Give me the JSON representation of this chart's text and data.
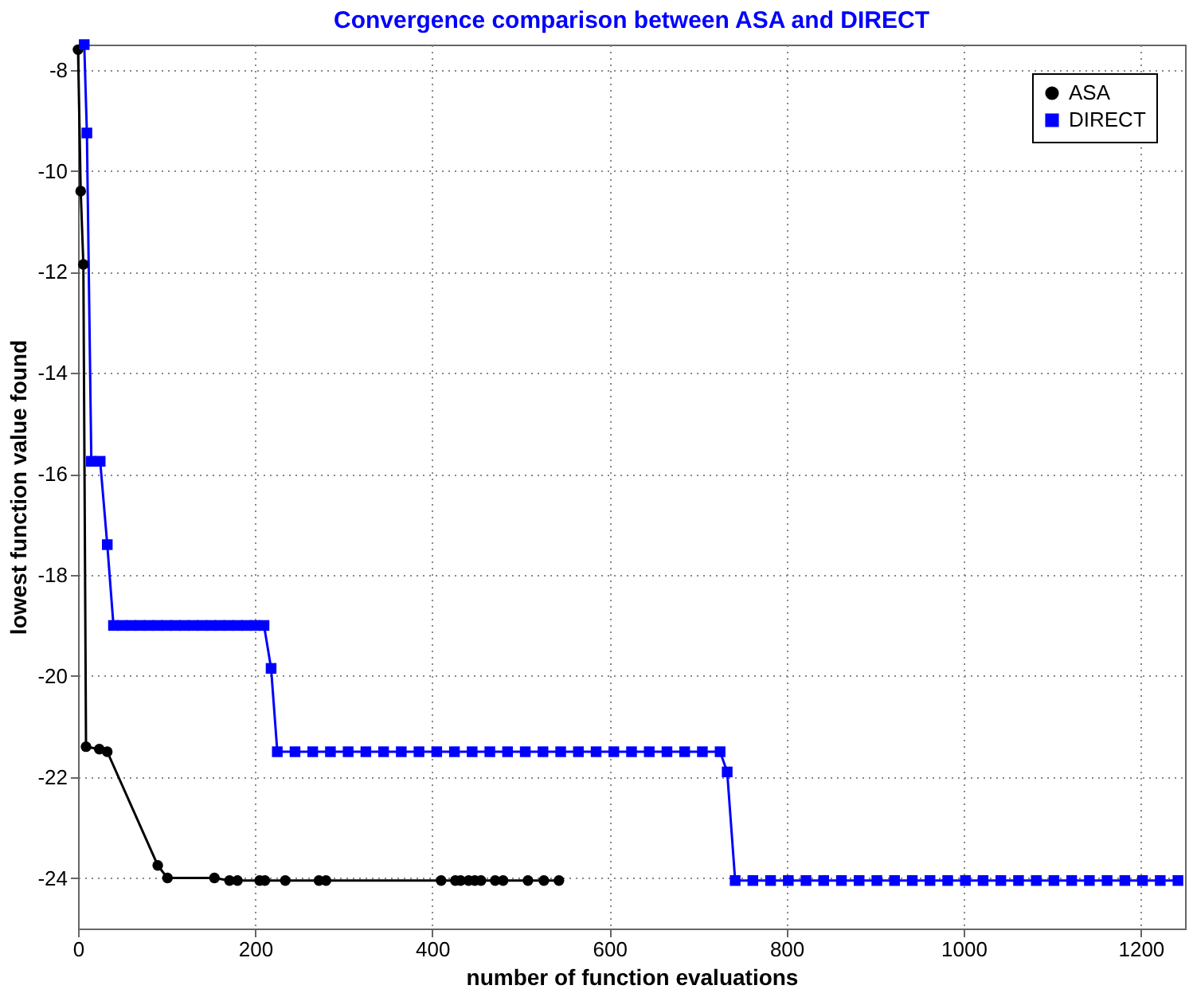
{
  "chart_data": {
    "type": "line",
    "title": "Convergence comparison between ASA and DIRECT",
    "xlabel": "number of function evaluations",
    "ylabel": "lowest function value found",
    "xlim": [
      0,
      1250
    ],
    "xticks": [
      0,
      200,
      400,
      600,
      800,
      1000,
      1200
    ],
    "ylim": [
      -25,
      -7.5
    ],
    "yticks": [
      -24,
      -22,
      -20,
      -18,
      -16,
      -14,
      -12,
      -10,
      -8
    ],
    "grid": true,
    "legend": "top right",
    "line_style": "solid",
    "series": [
      {
        "name": "ASA",
        "color": "#000000",
        "marker": "circle",
        "x": [
          0,
          3,
          6,
          9,
          24,
          33,
          90,
          101,
          154,
          171,
          180,
          205,
          211,
          234,
          272,
          280,
          410,
          426,
          432,
          441,
          448,
          455,
          471,
          480,
          508,
          526,
          543
        ],
        "values": [
          -7.6,
          -10.4,
          -11.85,
          -21.4,
          -21.45,
          -21.5,
          -23.75,
          -24.0,
          -24.0,
          -24.05,
          -24.05,
          -24.05,
          -24.05,
          -24.05,
          -24.05,
          -24.05,
          -24.05,
          -24.05,
          -24.05,
          -24.05,
          -24.05,
          -24.05,
          -24.05,
          -24.05,
          -24.05,
          -24.05,
          -24.05
        ]
      },
      {
        "name": "DIRECT",
        "color": "#0000ff",
        "marker": "square",
        "x": [
          7,
          10,
          15,
          25,
          33,
          40,
          50,
          60,
          70,
          80,
          90,
          100,
          110,
          120,
          130,
          140,
          150,
          160,
          170,
          180,
          190,
          200,
          210,
          218,
          225,
          245,
          265,
          285,
          305,
          325,
          345,
          365,
          385,
          405,
          425,
          445,
          465,
          485,
          505,
          525,
          545,
          565,
          585,
          605,
          625,
          645,
          665,
          685,
          705,
          725,
          733,
          742,
          762,
          782,
          802,
          822,
          842,
          862,
          882,
          902,
          922,
          942,
          962,
          982,
          1002,
          1022,
          1042,
          1062,
          1082,
          1102,
          1122,
          1142,
          1162,
          1182,
          1202,
          1222,
          1242
        ],
        "values": [
          -7.5,
          -9.25,
          -15.75,
          -15.75,
          -17.4,
          -19.0,
          -19.0,
          -19.0,
          -19.0,
          -19.0,
          -19.0,
          -19.0,
          -19.0,
          -19.0,
          -19.0,
          -19.0,
          -19.0,
          -19.0,
          -19.0,
          -19.0,
          -19.0,
          -19.0,
          -19.0,
          -19.85,
          -21.5,
          -21.5,
          -21.5,
          -21.5,
          -21.5,
          -21.5,
          -21.5,
          -21.5,
          -21.5,
          -21.5,
          -21.5,
          -21.5,
          -21.5,
          -21.5,
          -21.5,
          -21.5,
          -21.5,
          -21.5,
          -21.5,
          -21.5,
          -21.5,
          -21.5,
          -21.5,
          -21.5,
          -21.5,
          -21.5,
          -21.9,
          -24.05,
          -24.05,
          -24.05,
          -24.05,
          -24.05,
          -24.05,
          -24.05,
          -24.05,
          -24.05,
          -24.05,
          -24.05,
          -24.05,
          -24.05,
          -24.05,
          -24.05,
          -24.05,
          -24.05,
          -24.05,
          -24.05,
          -24.05,
          -24.05,
          -24.05,
          -24.05,
          -24.05,
          -24.05,
          -24.05
        ]
      }
    ]
  }
}
